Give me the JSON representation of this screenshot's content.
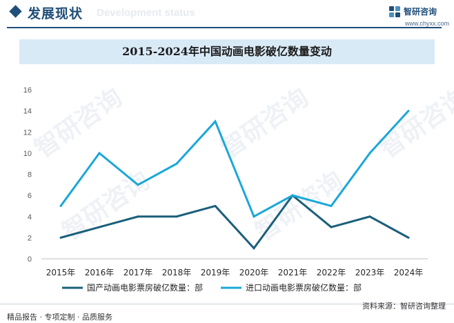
{
  "header": {
    "title": "发展现状",
    "subtitle_en": "Development status",
    "accent_color": "#1f4e79",
    "icon": "diamond-icon"
  },
  "brand": {
    "name": "智研咨询",
    "url": "www.chyxx.com",
    "icon": "zhiyan-logo-icon"
  },
  "watermark_text": "智研咨询",
  "chart_data": {
    "type": "line",
    "title": "2015-2024年中国动画电影破亿数量变动",
    "categories": [
      "2015年",
      "2016年",
      "2017年",
      "2018年",
      "2019年",
      "2020年",
      "2021年",
      "2022年",
      "2023年",
      "2024年"
    ],
    "ylim": [
      0,
      16
    ],
    "yticks": [
      0,
      2,
      4,
      6,
      8,
      10,
      12,
      14,
      16
    ],
    "grid": false,
    "legend_position": "bottom",
    "series": [
      {
        "name": "国产动画电影票房破亿数量：部",
        "color": "#1a5f7a",
        "values": [
          2,
          3,
          4,
          4,
          5,
          1,
          6,
          3,
          4,
          2
        ]
      },
      {
        "name": "进口动画电影票房破亿数量：部",
        "color": "#1aa7d8",
        "values": [
          5,
          10,
          7,
          9,
          13,
          4,
          6,
          5,
          10,
          14
        ]
      }
    ]
  },
  "footer": {
    "left": "精品报告 · 专项定制 · 品质服务",
    "right": "资料来源：智研咨询整理"
  }
}
